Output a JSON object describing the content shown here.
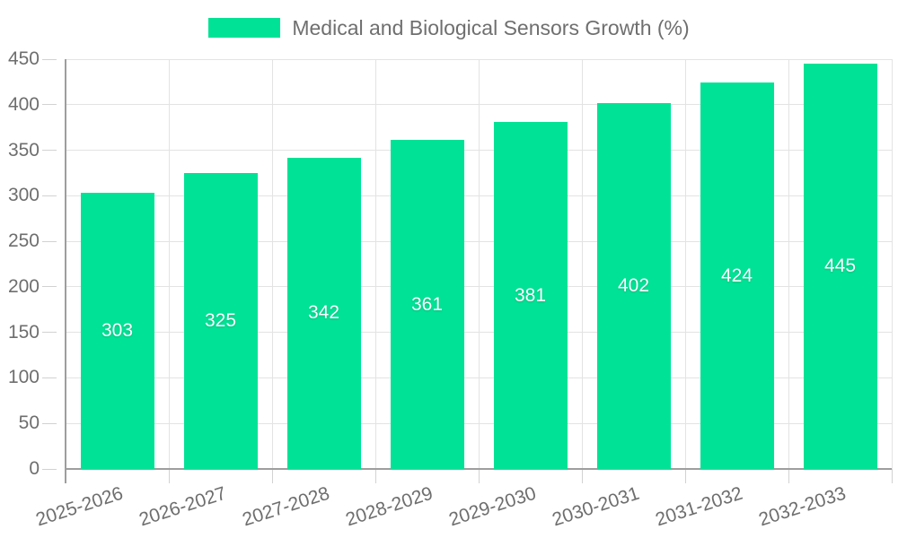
{
  "legend": {
    "label": "Medical and Biological Sensors Growth (%)"
  },
  "chart_data": {
    "type": "bar",
    "title": "Medical and Biological Sensors Growth (%)",
    "categories": [
      "2025-2026",
      "2026-2027",
      "2027-2028",
      "2028-2029",
      "2029-2030",
      "2030-2031",
      "2031-2032",
      "2032-2033"
    ],
    "values": [
      303,
      325,
      342,
      361,
      381,
      402,
      424,
      445
    ],
    "xlabel": "",
    "ylabel": "",
    "ylim": [
      0,
      450
    ],
    "ytick_step": 50,
    "yticks": [
      0,
      50,
      100,
      150,
      200,
      250,
      300,
      350,
      400,
      450
    ],
    "grid": true,
    "legend_position": "top-center",
    "data_labels": "inside-center",
    "colors": {
      "bar": "#00e396",
      "bar_value_text": "#ffffff",
      "axis_text": "#6e6e6e",
      "legend_text": "#6f6f6f",
      "gridline": "#e3e3e3",
      "tick": "#d2d2d2",
      "axis_line": "#9e9e9e"
    }
  }
}
